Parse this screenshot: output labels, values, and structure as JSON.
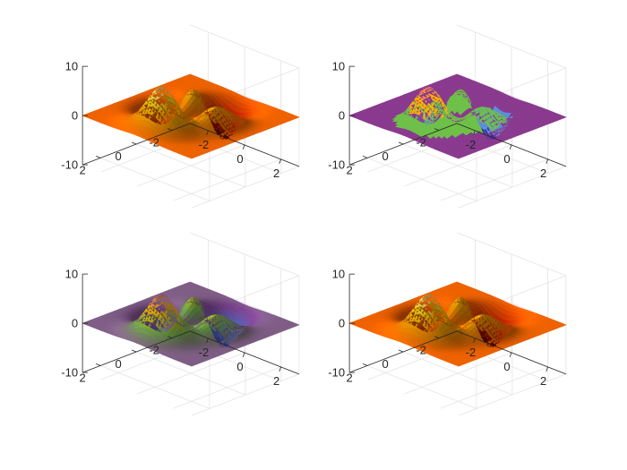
{
  "chart_data": [
    {
      "type": "surface",
      "panel": "top-left",
      "colormap": "hot (shiny lighting)",
      "colors": [
        "#4a0000",
        "#cc1800",
        "#ff5a00",
        "#ff9c00",
        "#ffdc00",
        "#ffffc8"
      ],
      "xlim": [
        -3,
        3
      ],
      "ylim": [
        -3,
        3
      ],
      "zlim": [
        -10,
        10
      ],
      "x_ticks": [
        "-2",
        "0",
        "2"
      ],
      "y_ticks": [
        "2",
        "0",
        "-2"
      ],
      "z_ticks": [
        "10",
        "0",
        "-10"
      ],
      "peaks_z_range": [
        -6.5,
        8.1
      ],
      "grid": true
    },
    {
      "type": "surface",
      "panel": "top-right",
      "colormap": "flat banded (few discrete colors)",
      "colors": [
        "#3d3399",
        "#5b8fdb",
        "#8a3a8f",
        "#6ec049",
        "#ffb000",
        "#f2707d"
      ],
      "xlim": [
        -3,
        3
      ],
      "ylim": [
        -3,
        3
      ],
      "zlim": [
        -10,
        10
      ],
      "x_ticks": [
        "-2",
        "0",
        "2"
      ],
      "y_ticks": [
        "2",
        "0",
        "-2"
      ],
      "z_ticks": [
        "10",
        "0",
        "-10"
      ],
      "peaks_z_range": [
        -6.5,
        8.1
      ],
      "grid": true
    },
    {
      "type": "surface",
      "panel": "bottom-left",
      "colormap": "smooth (purple-blue-green-yellow-pink)",
      "colors": [
        "#3b3aa0",
        "#5478d6",
        "#8a4aa0",
        "#7ab850",
        "#ffc000",
        "#f08080"
      ],
      "xlim": [
        -3,
        3
      ],
      "ylim": [
        -3,
        3
      ],
      "zlim": [
        -10,
        10
      ],
      "x_ticks": [
        "-2",
        "0",
        "2"
      ],
      "y_ticks": [
        "2",
        "0",
        "-2"
      ],
      "z_ticks": [
        "10",
        "0",
        "-10"
      ],
      "peaks_z_range": [
        -6.5,
        8.1
      ],
      "grid": true
    },
    {
      "type": "surface",
      "panel": "bottom-right",
      "colormap": "hot (shiny lighting)",
      "colors": [
        "#4a0000",
        "#cc1800",
        "#ff5a00",
        "#ff9c00",
        "#ffdc00",
        "#ffffc8"
      ],
      "xlim": [
        -3,
        3
      ],
      "ylim": [
        -3,
        3
      ],
      "zlim": [
        -10,
        10
      ],
      "x_ticks": [
        "-2",
        "0",
        "2"
      ],
      "y_ticks": [
        "2",
        "0",
        "-2"
      ],
      "z_ticks": [
        "10",
        "0",
        "-10"
      ],
      "peaks_z_range": [
        -6.5,
        8.1
      ],
      "grid": true
    }
  ]
}
